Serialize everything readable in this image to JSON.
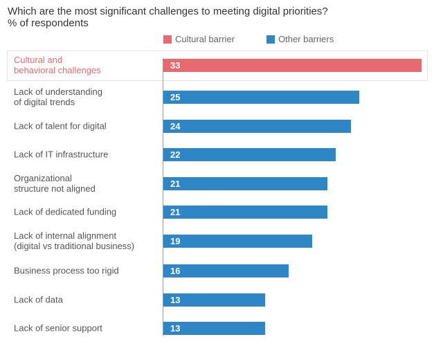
{
  "chart_data": {
    "type": "bar",
    "orientation": "horizontal",
    "title": "Which are the most significant challenges to meeting digital priorities?",
    "subtitle": "% of respondents",
    "legend": [
      {
        "label": "Cultural barrier",
        "color": "#e56b71"
      },
      {
        "label": "Other barriers",
        "color": "#2e86c6"
      }
    ],
    "legend_placement": "top",
    "categories": [
      [
        "Cultural and",
        "behavioral challenges"
      ],
      [
        "Lack of understanding",
        "of digital trends"
      ],
      [
        "Lack of talent for digital"
      ],
      [
        "Lack of IT infrastructure"
      ],
      [
        "Organizational",
        "structure not aligned"
      ],
      [
        "Lack of dedicated funding"
      ],
      [
        "Lack of internal alignment",
        "(digital vs traditional business)"
      ],
      [
        "Business process too rigid"
      ],
      [
        "Lack of data"
      ],
      [
        "Lack of senior support"
      ]
    ],
    "values": [
      33,
      25,
      24,
      22,
      21,
      21,
      19,
      16,
      13,
      13
    ],
    "series_index": [
      0,
      1,
      1,
      1,
      1,
      1,
      1,
      1,
      1,
      1
    ],
    "xlim": [
      0,
      33
    ],
    "grid": false
  }
}
